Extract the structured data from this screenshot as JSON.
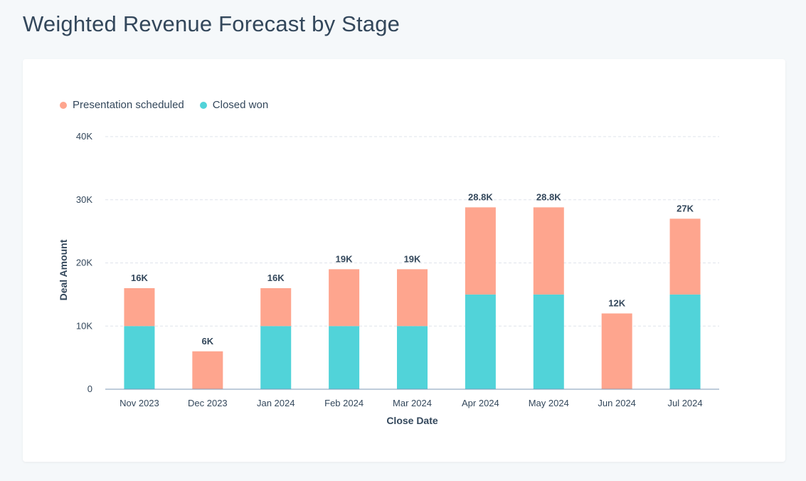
{
  "page": {
    "title": "Weighted Revenue Forecast by Stage"
  },
  "colors": {
    "presentation_scheduled": "#fea58e",
    "closed_won": "#51d3d9",
    "gridline": "#dfe3eb",
    "axis": "#7c98b6",
    "text": "#33475b"
  },
  "chart_data": {
    "type": "bar",
    "stacked": true,
    "xlabel": "Close Date",
    "ylabel": "Deal Amount",
    "ylim": [
      0,
      40000
    ],
    "yticks": [
      0,
      10000,
      20000,
      30000,
      40000
    ],
    "ytick_labels": [
      "0",
      "10K",
      "20K",
      "30K",
      "40K"
    ],
    "grid": true,
    "legend_position": "top-left",
    "categories": [
      "Nov 2023",
      "Dec 2023",
      "Jan 2024",
      "Feb 2024",
      "Mar 2024",
      "Apr 2024",
      "May 2024",
      "Jun 2024",
      "Jul 2024"
    ],
    "series": [
      {
        "name": "Closed won",
        "color_key": "closed_won",
        "values": [
          10000,
          0,
          10000,
          10000,
          10000,
          15000,
          15000,
          0,
          15000
        ]
      },
      {
        "name": "Presentation scheduled",
        "color_key": "presentation_scheduled",
        "values": [
          6000,
          6000,
          6000,
          9000,
          9000,
          13800,
          13800,
          12000,
          12000
        ]
      }
    ],
    "legend": [
      "Presentation scheduled",
      "Closed won"
    ],
    "total_labels": [
      "16K",
      "6K",
      "16K",
      "19K",
      "19K",
      "28.8K",
      "28.8K",
      "12K",
      "27K"
    ]
  }
}
